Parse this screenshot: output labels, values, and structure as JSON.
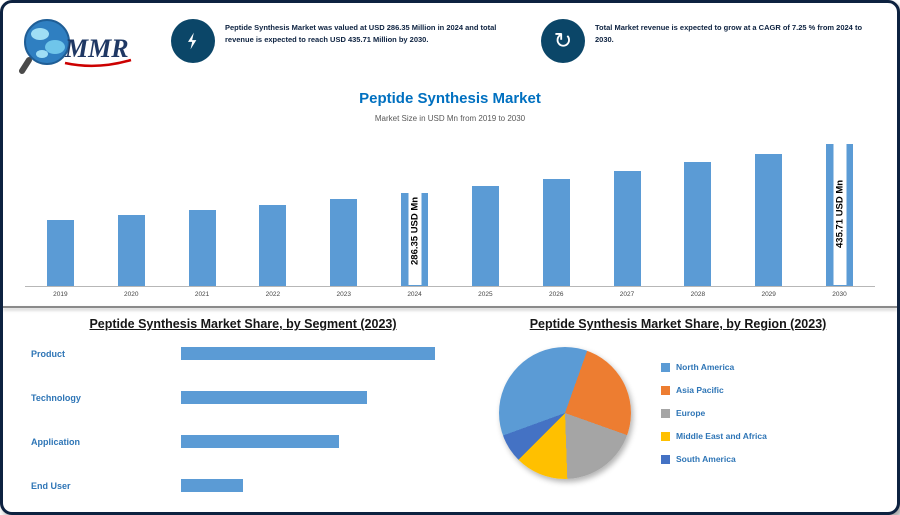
{
  "brand": {
    "logo_text": "MMR"
  },
  "colors": {
    "accent_blue": "#5B9BD5",
    "title_blue": "#0070C0",
    "navy": "#0D2240",
    "icon_circle": "#0B4668"
  },
  "header": {
    "left": {
      "icon": "lightning-icon",
      "text": "Peptide Synthesis Market was valued at USD 286.35 Million in 2024 and total revenue is expected to reach USD 435.71 Million by 2030."
    },
    "right": {
      "icon": "growth-cycle-icon",
      "text": "Total Market revenue is expected to grow at a CAGR of 7.25 % from 2024 to 2030."
    }
  },
  "chart_data": [
    {
      "type": "bar",
      "title": "Peptide Synthesis Market",
      "subtitle": "Market Size in USD Mn from 2019 to 2030",
      "categories": [
        "2019",
        "2020",
        "2021",
        "2022",
        "2023",
        "2024",
        "2025",
        "2026",
        "2027",
        "2028",
        "2029",
        "2030"
      ],
      "values": [
        202.1,
        216.7,
        232.4,
        249.2,
        267.2,
        286.35,
        307.1,
        329.3,
        353.2,
        378.8,
        406.2,
        435.71
      ],
      "ylabel": "USD Mn",
      "ylim": [
        0,
        460
      ],
      "bar_color": "#5B9BD5",
      "legend_position": "none",
      "grid": false,
      "annotations": [
        {
          "bar_index": 5,
          "label": "286.35 USD Mn"
        },
        {
          "bar_index": 11,
          "label": "435.71 USD Mn"
        }
      ]
    },
    {
      "type": "bar",
      "orientation": "horizontal",
      "title": "Peptide Synthesis Market Share, by Segment (2023)",
      "categories": [
        "Product",
        "Technology",
        "Application",
        "End User"
      ],
      "values": [
        45,
        33,
        28,
        11
      ],
      "xlim": [
        0,
        50
      ],
      "bar_color": "#5B9BD5",
      "grid": false
    },
    {
      "type": "pie",
      "title": "Peptide Synthesis Market Share, by Region (2023)",
      "labels": [
        "North America",
        "Asia Pacific",
        "Europe",
        "Middle East and Africa",
        "South America"
      ],
      "values": [
        36,
        25,
        19,
        13,
        7
      ],
      "colors": [
        "#5B9BD5",
        "#ED7D31",
        "#A5A5A5",
        "#FFC000",
        "#4472C4"
      ],
      "start_angle_deg": -110,
      "legend_position": "right"
    }
  ]
}
